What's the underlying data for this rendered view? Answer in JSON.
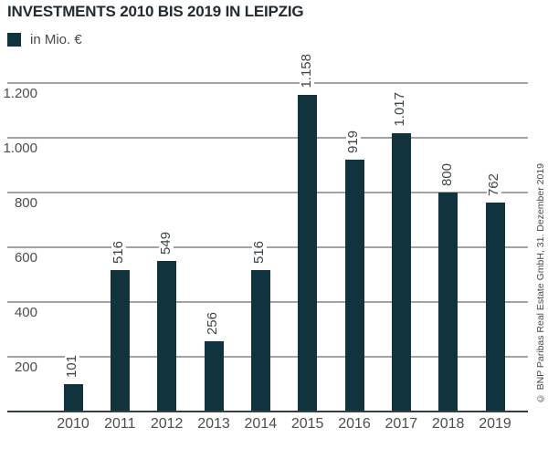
{
  "title": "INVESTMENTS 2010 BIS 2019 IN LEIPZIG",
  "legend": {
    "label": "in Mio. €",
    "swatch_color": "#11333d"
  },
  "chart_data": {
    "type": "bar",
    "title": "INVESTMENTS 2010 BIS 2019 IN LEIPZIG",
    "unit": "Mio. €",
    "categories": [
      "2010",
      "2011",
      "2012",
      "2013",
      "2014",
      "2015",
      "2016",
      "2017",
      "2018",
      "2019"
    ],
    "values": [
      101,
      516,
      549,
      256,
      516,
      1158,
      919,
      1017,
      800,
      762
    ],
    "value_labels": [
      "101",
      "516",
      "549",
      "256",
      "516",
      "1.158",
      "919",
      "1.017",
      "800",
      "762"
    ],
    "yticks": [
      200,
      400,
      600,
      800,
      1000,
      1200
    ],
    "ytick_labels": [
      "200",
      "400",
      "600",
      "800",
      "1.000",
      "1.200"
    ],
    "ylim": [
      0,
      1300
    ],
    "grid": "horizontal",
    "legend_position": "top-left",
    "bar_color": "#11333d"
  },
  "footer": {
    "copyright": "© BNP Paribas Real Estate GmbH, 31. Dezember 2019"
  }
}
